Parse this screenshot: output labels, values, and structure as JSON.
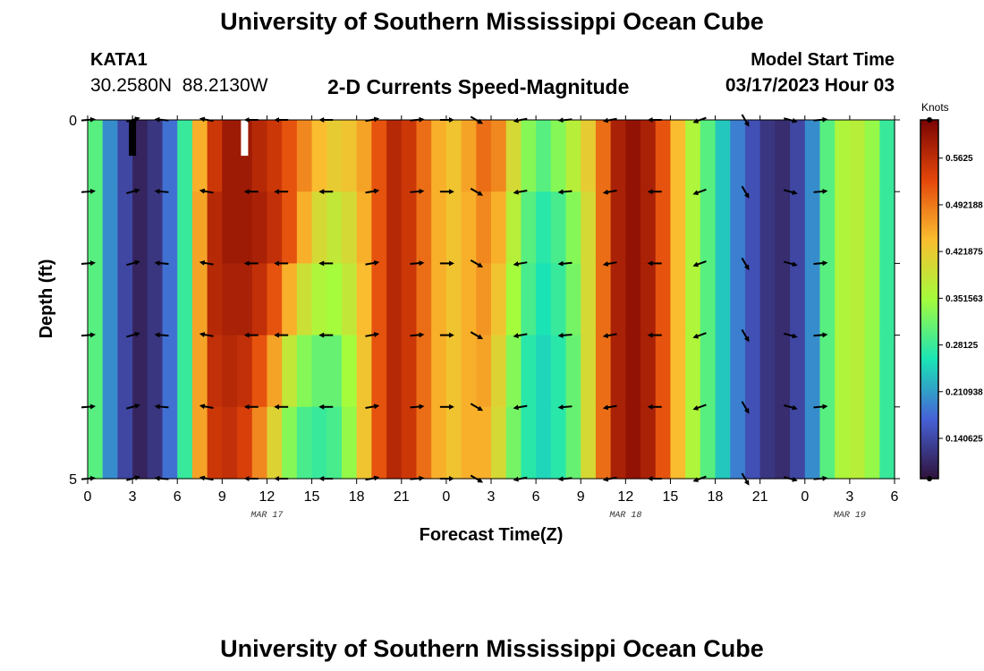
{
  "header": {
    "title": "University of Southern Mississippi Ocean Cube",
    "station": "KATA1",
    "coords": "30.2580N  88.2130W",
    "plot_title": "2-D Currents Speed-Magnitude",
    "model_start_label": "Model Start Time",
    "model_start_value": "03/17/2023 Hour 03"
  },
  "footer": {
    "title": "University of Southern Mississippi Ocean Cube"
  },
  "colors": {
    "cb0": "#30123b",
    "cb1": "#4662d7",
    "cb2": "#1ae4b6",
    "cb3": "#a4fc3c",
    "cb4": "#fabd2f",
    "cb5": "#e4460a",
    "cb6": "#7a0403"
  },
  "chart_data": {
    "type": "heatmap",
    "title": "2-D Currents Speed-Magnitude",
    "xlabel": "Forecast Time(Z)",
    "ylabel": "Depth (ft)",
    "x_range_hours": [
      0,
      54
    ],
    "x_tick_hours": [
      0,
      3,
      6,
      9,
      12,
      15,
      18,
      21,
      24,
      27,
      30,
      33,
      36,
      39,
      42,
      45,
      48,
      51,
      54
    ],
    "x_tick_labels": [
      "0",
      "3",
      "6",
      "9",
      "12",
      "15",
      "18",
      "21",
      "0",
      "3",
      "6",
      "9",
      "12",
      "15",
      "18",
      "21",
      "0",
      "3",
      "6"
    ],
    "date_labels": [
      {
        "hour": 12,
        "text": "MAR 17"
      },
      {
        "hour": 36,
        "text": "MAR 18"
      },
      {
        "hour": 51,
        "text": "MAR 19"
      }
    ],
    "y_range": [
      0,
      5
    ],
    "y_ticks": [
      0,
      5
    ],
    "y_tick_labels": [
      "0",
      "5"
    ],
    "depth_levels": [
      0,
      1,
      2,
      3,
      4,
      5
    ],
    "colorbar": {
      "title": "Knots",
      "range": [
        0.08,
        0.62
      ],
      "ticks": [
        0.140625,
        0.210938,
        0.28125,
        0.3515625,
        0.421875,
        0.4921875,
        0.5625
      ],
      "tick_labels": [
        "0.140625",
        "0.210938",
        "0.28125",
        "0.351563",
        "0.421875",
        "0.492188",
        "0.5625"
      ]
    },
    "speed_knots_by_hour_column": {
      "hours": [
        0,
        1,
        2,
        3,
        4,
        5,
        6,
        7,
        8,
        9,
        10,
        11,
        12,
        13,
        14,
        15,
        16,
        17,
        18,
        19,
        20,
        21,
        22,
        23,
        24,
        25,
        26,
        27,
        28,
        29,
        30,
        31,
        32,
        33,
        34,
        35,
        36,
        37,
        38,
        39,
        40,
        41,
        42,
        43,
        44,
        45,
        46,
        47,
        48,
        49,
        50,
        51,
        52,
        53
      ],
      "depth_rows": [
        [
          0.3,
          0.2,
          0.14,
          0.1,
          0.12,
          0.18,
          0.28,
          0.45,
          0.55,
          0.59,
          0.59,
          0.57,
          0.55,
          0.52,
          0.48,
          0.44,
          0.42,
          0.43,
          0.46,
          0.52,
          0.57,
          0.55,
          0.5,
          0.45,
          0.43,
          0.46,
          0.5,
          0.48,
          0.4,
          0.33,
          0.3,
          0.33,
          0.37,
          0.42,
          0.5,
          0.58,
          0.6,
          0.58,
          0.52,
          0.44,
          0.36,
          0.3,
          0.24,
          0.19,
          0.15,
          0.12,
          0.11,
          0.14,
          0.2,
          0.3,
          0.36,
          0.37,
          0.34,
          0.28
        ],
        [
          0.3,
          0.2,
          0.14,
          0.1,
          0.12,
          0.18,
          0.28,
          0.46,
          0.57,
          0.59,
          0.59,
          0.58,
          0.56,
          0.52,
          0.45,
          0.4,
          0.38,
          0.4,
          0.45,
          0.52,
          0.57,
          0.55,
          0.5,
          0.45,
          0.43,
          0.45,
          0.48,
          0.45,
          0.37,
          0.3,
          0.27,
          0.29,
          0.33,
          0.4,
          0.5,
          0.58,
          0.6,
          0.58,
          0.52,
          0.44,
          0.36,
          0.3,
          0.24,
          0.19,
          0.15,
          0.12,
          0.11,
          0.14,
          0.2,
          0.3,
          0.36,
          0.37,
          0.34,
          0.28
        ],
        [
          0.3,
          0.2,
          0.14,
          0.1,
          0.12,
          0.18,
          0.28,
          0.46,
          0.57,
          0.58,
          0.58,
          0.56,
          0.52,
          0.45,
          0.39,
          0.36,
          0.35,
          0.38,
          0.44,
          0.52,
          0.57,
          0.55,
          0.5,
          0.45,
          0.43,
          0.45,
          0.47,
          0.43,
          0.35,
          0.29,
          0.26,
          0.28,
          0.32,
          0.4,
          0.5,
          0.58,
          0.6,
          0.58,
          0.52,
          0.44,
          0.36,
          0.3,
          0.24,
          0.19,
          0.15,
          0.12,
          0.11,
          0.14,
          0.2,
          0.3,
          0.36,
          0.37,
          0.34,
          0.28
        ],
        [
          0.3,
          0.2,
          0.14,
          0.1,
          0.12,
          0.18,
          0.28,
          0.46,
          0.56,
          0.57,
          0.56,
          0.52,
          0.46,
          0.38,
          0.33,
          0.31,
          0.31,
          0.35,
          0.43,
          0.52,
          0.57,
          0.55,
          0.5,
          0.45,
          0.43,
          0.45,
          0.46,
          0.41,
          0.33,
          0.27,
          0.25,
          0.27,
          0.31,
          0.4,
          0.5,
          0.58,
          0.6,
          0.58,
          0.52,
          0.44,
          0.36,
          0.3,
          0.24,
          0.19,
          0.15,
          0.12,
          0.11,
          0.14,
          0.2,
          0.3,
          0.36,
          0.37,
          0.34,
          0.28
        ],
        [
          0.3,
          0.2,
          0.14,
          0.1,
          0.12,
          0.18,
          0.28,
          0.46,
          0.55,
          0.56,
          0.54,
          0.48,
          0.41,
          0.33,
          0.29,
          0.28,
          0.29,
          0.34,
          0.43,
          0.52,
          0.57,
          0.55,
          0.5,
          0.45,
          0.43,
          0.45,
          0.45,
          0.4,
          0.32,
          0.27,
          0.25,
          0.27,
          0.31,
          0.4,
          0.5,
          0.58,
          0.6,
          0.58,
          0.52,
          0.44,
          0.36,
          0.3,
          0.24,
          0.19,
          0.15,
          0.12,
          0.11,
          0.14,
          0.2,
          0.3,
          0.36,
          0.37,
          0.34,
          0.28
        ]
      ]
    },
    "arrow_direction_deg_by_hour": {
      "hours": [
        0,
        3,
        5,
        8,
        11,
        13,
        16,
        19,
        22,
        24,
        26,
        29,
        32,
        35,
        38,
        41,
        44,
        47,
        49
      ],
      "degrees": [
        5,
        15,
        175,
        170,
        180,
        180,
        180,
        10,
        5,
        0,
        330,
        190,
        185,
        190,
        180,
        200,
        300,
        345,
        5
      ]
    },
    "missing_data_markers": [
      {
        "hour": 3,
        "depth": [
          0,
          0.5
        ],
        "color": "#000000"
      },
      {
        "hour": 10.5,
        "depth": [
          0,
          0.5
        ],
        "color": "#ffffff"
      }
    ]
  }
}
